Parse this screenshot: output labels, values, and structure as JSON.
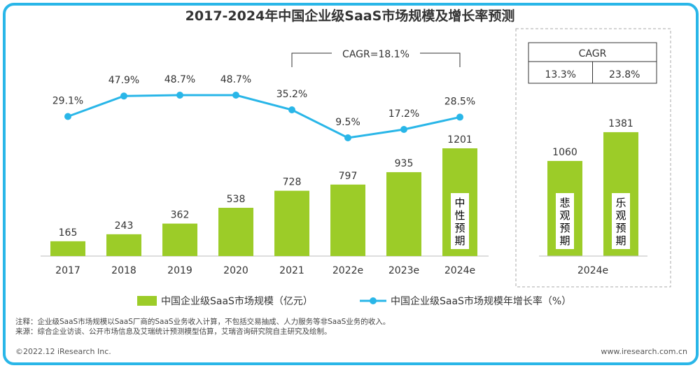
{
  "chart_data": {
    "type": "bar+line",
    "title": "2017-2024年中国企业级SaaS市场规模及增长率预测",
    "categories": [
      "2017",
      "2018",
      "2019",
      "2020",
      "2021",
      "2022e",
      "2023e",
      "2024e"
    ],
    "series": [
      {
        "name": "中国企业级SaaS市场规模（亿元）",
        "type": "bar",
        "values": [
          165,
          243,
          362,
          538,
          728,
          797,
          935,
          1201
        ]
      },
      {
        "name": "中国企业级SaaS市场规模年增长率（%）",
        "type": "line",
        "values": [
          29.1,
          47.9,
          48.7,
          48.7,
          35.2,
          9.5,
          17.2,
          28.5
        ],
        "labels": [
          "29.1%",
          "47.9%",
          "48.7%",
          "48.7%",
          "35.2%",
          "9.5%",
          "17.2%",
          "28.5%"
        ]
      }
    ],
    "bar_inner_label": {
      "category": "2024e",
      "text": "中性预期"
    },
    "cagr_bracket": {
      "from": "2021",
      "to": "2024e",
      "text": "CAGR=18.1%"
    },
    "scenario_panel": {
      "category": "2024e",
      "bars": [
        {
          "label": "悲观预期",
          "value": 1060
        },
        {
          "label": "乐观预期",
          "value": 1381
        }
      ],
      "cagr_header": "CAGR",
      "cagr_values": [
        "13.3%",
        "23.8%"
      ]
    },
    "colors": {
      "bar": "#9ccc28",
      "line": "#29b6e8",
      "frame": "#29b6e8"
    }
  },
  "notes": {
    "note": "注释：企业级SaaS市场规模以SaaS厂商的SaaS业务收入计算，不包括交易抽成、人力服务等非SaaS业务的收入。",
    "source": "来源：综合企业访谈、公开市场信息及艾瑞统计预测模型估算，艾瑞咨询研究院自主研究及绘制。"
  },
  "footer": {
    "copyright": "©2022.12 iResearch Inc.",
    "url": "www.iresearch.com.cn"
  }
}
